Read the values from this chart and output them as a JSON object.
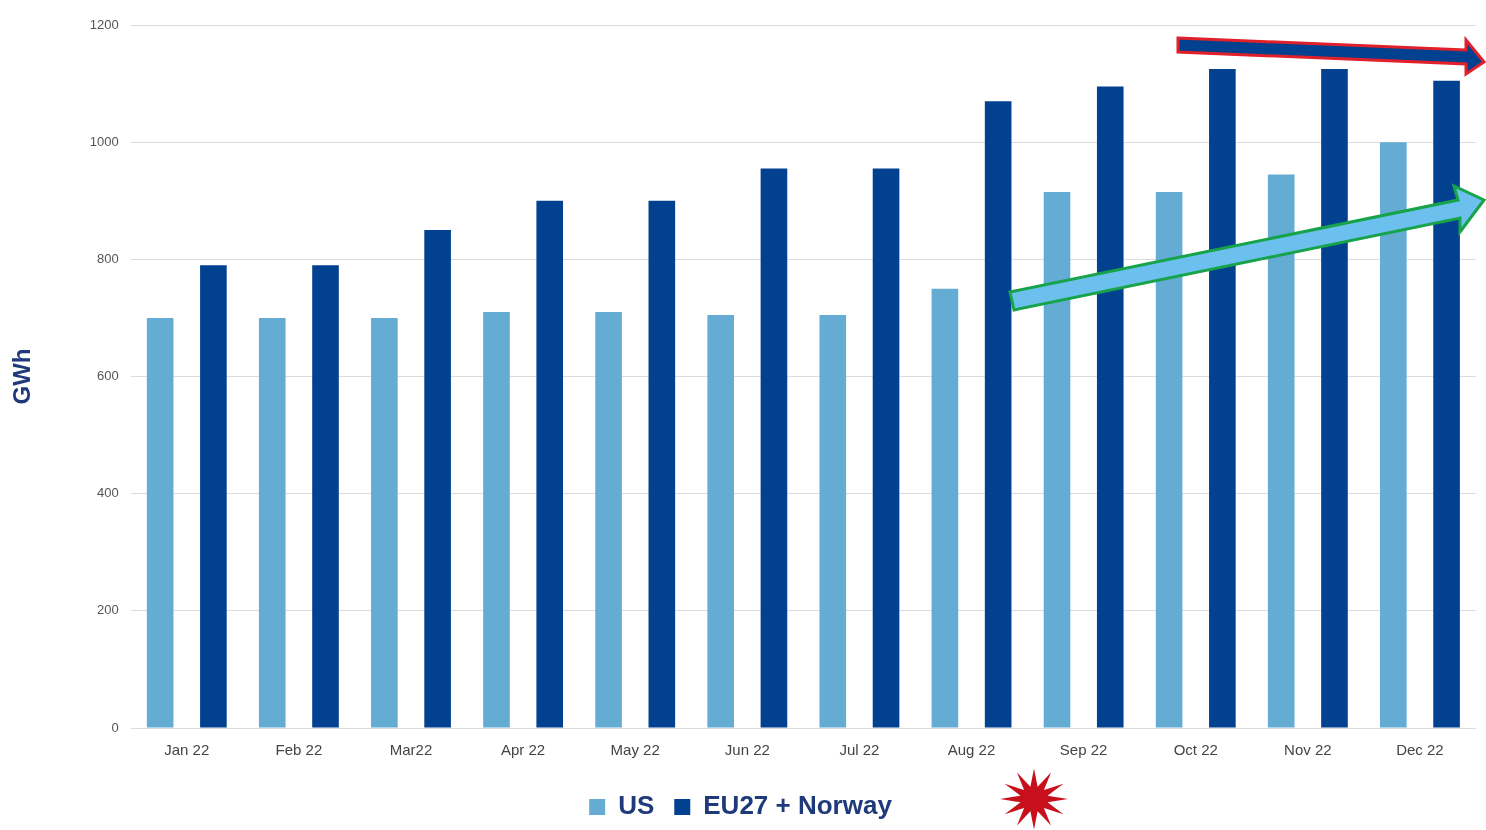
{
  "chart_data": {
    "type": "bar",
    "ylabel": "GWh",
    "categories": [
      "Jan 22",
      "Feb 22",
      "Mar22",
      "Apr 22",
      "May 22",
      "Jun 22",
      "Jul 22",
      "Aug 22",
      "Sep 22",
      "Oct 22",
      "Nov 22",
      "Dec 22"
    ],
    "series": [
      {
        "name": "US",
        "color": "#65acd4",
        "values": [
          700,
          700,
          700,
          710,
          710,
          705,
          705,
          750,
          915,
          915,
          945,
          1000
        ]
      },
      {
        "name": "EU27 + Norway",
        "color": "#02418f",
        "values": [
          790,
          790,
          850,
          900,
          900,
          955,
          955,
          1070,
          1095,
          1125,
          1125,
          1105
        ]
      }
    ],
    "ylim": [
      0,
      1200
    ],
    "yticks": [
      0,
      200,
      400,
      600,
      800,
      1000,
      1200
    ],
    "grid": "y",
    "legend": "bottom"
  }
}
